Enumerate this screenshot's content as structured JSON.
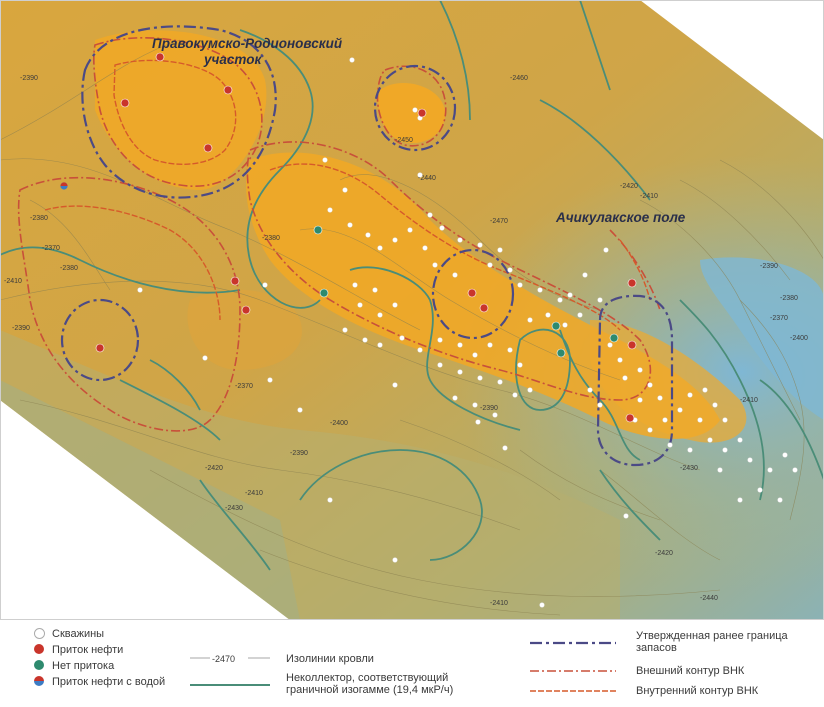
{
  "map": {
    "labels": {
      "area_1_line1": "Правокумско-Родионовский",
      "area_1_line2": "участок",
      "area_2": "Ачикулакское поле"
    },
    "isoline_labels": [
      "-2390",
      "-2380",
      "-2370",
      "-2380",
      "-2390",
      "-2410",
      "-2380",
      "-2370",
      "-2390",
      "-2400",
      "-2410",
      "-2420",
      "-2430",
      "-2440",
      "-2450",
      "-2460",
      "-2470",
      "-2420",
      "-2410",
      "-2390",
      "-2380",
      "-2370",
      "-2400",
      "-2410",
      "-2390",
      "-2430",
      "-2420",
      "-2440",
      "-2410"
    ],
    "colors": {
      "high": "#f3a824",
      "mid": "#d8a53f",
      "low": "#a8b07a",
      "deep": "#7fb1c8",
      "noncollector_line": "#4a8d78",
      "approved_boundary": "#4b4a86",
      "outer_contour": "#c8503a",
      "inner_contour": "#d65a2a",
      "well": "#ffffff",
      "oil_inflow": "#c9352b",
      "no_inflow": "#2e8a6e",
      "oil_water_top": "#c9352b",
      "oil_water_bottom": "#3d7cc4"
    }
  },
  "legend": {
    "wells": "Скважины",
    "oil_inflow": "Приток нефти",
    "no_inflow": "Нет притока",
    "oil_water_inflow": "Приток нефти с водой",
    "isoline_sample": "-2470",
    "isolines": "Изолинии кровли",
    "noncollector": "Неколлектор, соответствующий граничной изогамме (19,4 мкР/ч)",
    "approved_boundary": "Утвержденная ранее граница запасов",
    "outer_contour": "Внешний контур ВНК",
    "inner_contour": "Внутренний контур ВНК"
  }
}
